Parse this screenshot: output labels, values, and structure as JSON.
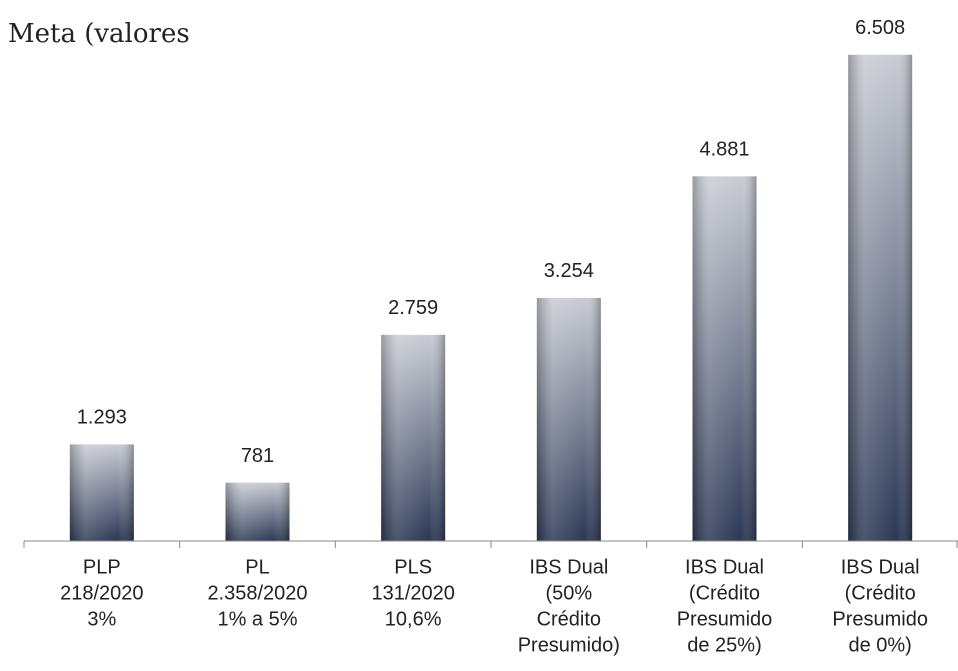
{
  "chart_data": {
    "type": "bar",
    "title": "Meta (valores",
    "categories": [
      [
        "PLP",
        "218/2020",
        "3%"
      ],
      [
        "PL",
        "2.358/2020",
        "1% a 5%"
      ],
      [
        "PLS",
        "131/2020",
        "10,6%"
      ],
      [
        "IBS Dual",
        "(50%",
        "Crédito",
        "Presumido)"
      ],
      [
        "IBS Dual",
        "(Crédito",
        "Presumido",
        "de 25%)"
      ],
      [
        "IBS Dual",
        "(Crédito",
        "Presumido",
        "de 0%)"
      ]
    ],
    "values": [
      1293,
      781,
      2759,
      3254,
      4881,
      6508
    ],
    "value_labels": [
      "1.293",
      "781",
      "2.759",
      "3.254",
      "4.881",
      "6.508"
    ],
    "color": "#2c3855",
    "ylim": [
      0,
      7000
    ]
  }
}
